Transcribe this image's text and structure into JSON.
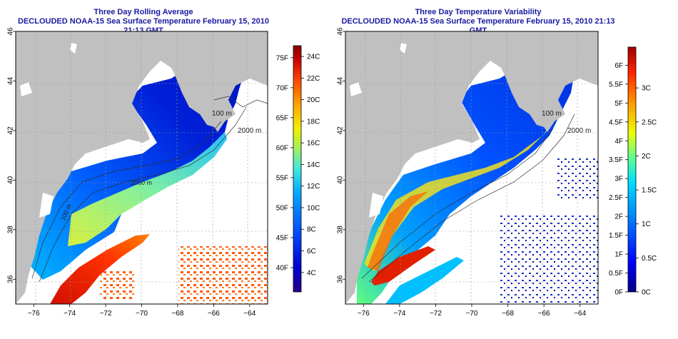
{
  "panels": [
    {
      "title_line1": "Three Day Rolling Average",
      "title_line2": "DECLOUDED NOAA-15 Sea Surface Temperature February 15, 2010 21:13 GMT",
      "lon_ticks": [
        "-76",
        "-74",
        "-72",
        "-70",
        "-68",
        "-66",
        "-64"
      ],
      "lat_ticks": [
        "36",
        "38",
        "40",
        "42",
        "44",
        "46"
      ],
      "contour_labels": [
        "100 m",
        "2000 m",
        "2000 m",
        "100 m"
      ],
      "colorbar_left": [
        "75F",
        "70F",
        "65F",
        "60F",
        "55F",
        "50F",
        "45F",
        "40F"
      ],
      "colorbar_right": [
        "24C",
        "22C",
        "20C",
        "18C",
        "16C",
        "14C",
        "12C",
        "10C",
        "8C",
        "6C",
        "4C"
      ],
      "colorbar_stops": [
        "#2a008a",
        "#0000d0",
        "#0050ff",
        "#00a8ff",
        "#40e8e0",
        "#a0f060",
        "#f0f000",
        "#ffb000",
        "#ff5000",
        "#d00000",
        "#800000"
      ]
    },
    {
      "title_line1": "Three Day Temperature Variability",
      "title_line2": "DECLOUDED NOAA-15 Sea Surface Temperature February 15, 2010 21:13 GMT",
      "lon_ticks": [
        "-76",
        "-74",
        "-72",
        "-70",
        "-68",
        "-66",
        "-64"
      ],
      "lat_ticks": [
        "36",
        "38",
        "40",
        "42",
        "44",
        "46"
      ],
      "contour_labels": [
        "100 m",
        "2000 m"
      ],
      "colorbar_left": [
        "6F",
        "5.5F",
        "5F",
        "4.5F",
        "4F",
        "3.5F",
        "3F",
        "2.5F",
        "2F",
        "1.5F",
        "1F",
        "0.5F",
        "0F"
      ],
      "colorbar_right": [
        "3C",
        "2.5C",
        "2C",
        "1.5C",
        "1C",
        "0.5C",
        "0C"
      ],
      "colorbar_stops": [
        "#00008a",
        "#0000ff",
        "#0080ff",
        "#00e0ff",
        "#60ff90",
        "#f0ff00",
        "#ff9000",
        "#ff2000",
        "#a00000"
      ]
    }
  ]
}
